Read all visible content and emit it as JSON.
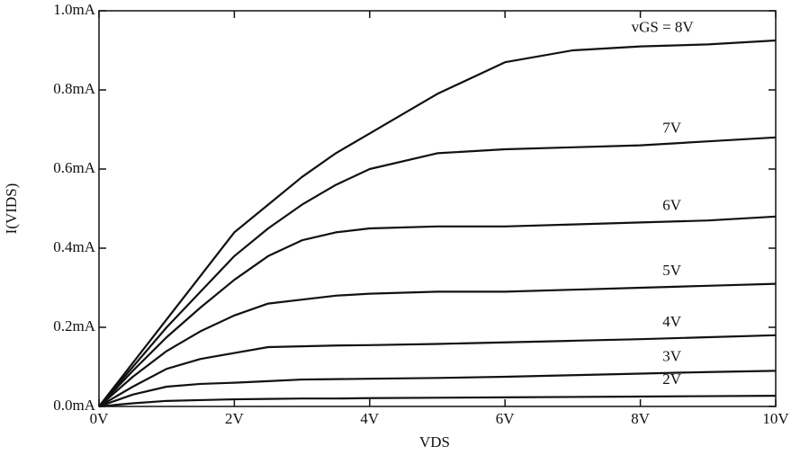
{
  "chart_data": {
    "type": "line",
    "x_label": "VDS",
    "y_label": "I(VIDS)",
    "x": [
      0,
      0.5,
      1,
      1.5,
      2,
      2.5,
      3,
      3.5,
      4,
      5,
      6,
      7,
      8,
      9,
      10
    ],
    "series": [
      {
        "name": "vGS = 8V",
        "color": "#111111",
        "values": [
          0,
          0.11,
          0.22,
          0.33,
          0.44,
          0.51,
          0.58,
          0.64,
          0.69,
          0.79,
          0.87,
          0.9,
          0.91,
          0.915,
          0.925
        ]
      },
      {
        "name": "7V",
        "color": "#111111",
        "values": [
          0,
          0.1,
          0.2,
          0.29,
          0.38,
          0.45,
          0.51,
          0.56,
          0.6,
          0.64,
          0.65,
          0.655,
          0.66,
          0.67,
          0.68
        ]
      },
      {
        "name": "6V",
        "color": "#111111",
        "values": [
          0,
          0.09,
          0.175,
          0.25,
          0.32,
          0.38,
          0.42,
          0.44,
          0.45,
          0.455,
          0.455,
          0.46,
          0.465,
          0.47,
          0.48
        ]
      },
      {
        "name": "5V",
        "color": "#111111",
        "values": [
          0,
          0.075,
          0.14,
          0.19,
          0.23,
          0.26,
          0.27,
          0.28,
          0.285,
          0.29,
          0.29,
          0.295,
          0.3,
          0.305,
          0.31
        ]
      },
      {
        "name": "4V",
        "color": "#111111",
        "values": [
          0,
          0.05,
          0.095,
          0.12,
          0.135,
          0.15,
          0.152,
          0.154,
          0.155,
          0.158,
          0.162,
          0.166,
          0.17,
          0.175,
          0.18
        ]
      },
      {
        "name": "3V",
        "color": "#111111",
        "values": [
          0,
          0.03,
          0.05,
          0.057,
          0.06,
          0.064,
          0.068,
          0.069,
          0.07,
          0.072,
          0.075,
          0.079,
          0.083,
          0.087,
          0.09
        ]
      },
      {
        "name": "2V",
        "color": "#111111",
        "values": [
          0,
          0.008,
          0.014,
          0.016,
          0.018,
          0.019,
          0.02,
          0.02,
          0.021,
          0.022,
          0.023,
          0.024,
          0.025,
          0.026,
          0.027
        ]
      }
    ],
    "xlim": [
      0,
      10
    ],
    "xticks": [
      {
        "value": 0,
        "label": "0V"
      },
      {
        "value": 2,
        "label": "2V"
      },
      {
        "value": 4,
        "label": "4V"
      },
      {
        "value": 6,
        "label": "6V"
      },
      {
        "value": 8,
        "label": "8V"
      },
      {
        "value": 10,
        "label": "10V"
      }
    ],
    "ylim": [
      0,
      1
    ],
    "yticks": [
      {
        "value": 0,
        "label": "0.0mA"
      },
      {
        "value": 0.2,
        "label": "0.2mA"
      },
      {
        "value": 0.4,
        "label": "0.4mA"
      },
      {
        "value": 0.6,
        "label": "0.6mA"
      },
      {
        "value": 0.8,
        "label": "0.8mA"
      },
      {
        "value": 1,
        "label": "1.0mA"
      }
    ],
    "grid": false
  }
}
